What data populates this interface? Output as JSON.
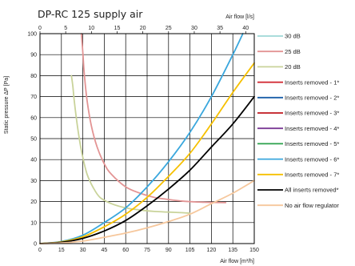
{
  "chart_data": {
    "type": "line",
    "title": "DP-RC 125 supply air",
    "xlabel": "Air flow [m³/h]",
    "x2label": "Air flow [l/s]",
    "ylabel": "Static pressure ΔP [Pa]",
    "xlim": [
      0,
      150
    ],
    "ylim": [
      0,
      100
    ],
    "x2lim": [
      0,
      41.667
    ],
    "x_ticks": [
      "0",
      "15",
      "30",
      "45",
      "60",
      "75",
      "90",
      "105",
      "120",
      "135",
      "150"
    ],
    "x2_ticks": [
      "0",
      "5",
      "10",
      "15",
      "20",
      "25",
      "30",
      "35",
      "40"
    ],
    "y_ticks": [
      "0",
      "10",
      "20",
      "30",
      "40",
      "50",
      "60",
      "70",
      "80",
      "90",
      "100"
    ],
    "grid": true,
    "legend_position": "right",
    "series": [
      {
        "name": "30 dB",
        "color": "#9ed8d6",
        "x": [],
        "y": []
      },
      {
        "name": "25 dB",
        "color": "#e39494",
        "x": [
          29,
          30,
          31,
          33,
          36,
          40,
          45,
          50,
          60,
          70,
          80,
          90,
          100,
          110,
          120,
          130
        ],
        "y": [
          100,
          91,
          81,
          68,
          56,
          46,
          38,
          33,
          27,
          24,
          22,
          21,
          20.2,
          19.8,
          19.6,
          19.5
        ]
      },
      {
        "name": "20 dB",
        "color": "#c9d39a",
        "x": [
          22,
          23,
          24,
          26,
          28,
          30,
          33,
          37,
          42,
          50,
          60,
          70,
          80,
          90,
          100,
          105
        ],
        "y": [
          80,
          75,
          68,
          57,
          48,
          41,
          33,
          27,
          22,
          19,
          17,
          16,
          15.3,
          15,
          14.7,
          14.5
        ]
      },
      {
        "name": "Inserts removed - 1*",
        "color": "#d0202a",
        "x": [],
        "y": []
      },
      {
        "name": "Inserts removed - 2*",
        "color": "#1a5ea8",
        "x": [],
        "y": []
      },
      {
        "name": "Inserts removed - 3*",
        "color": "#c0181f",
        "x": [],
        "y": []
      },
      {
        "name": "Inserts removed - 4*",
        "color": "#7b3a96",
        "x": [],
        "y": []
      },
      {
        "name": "Inserts removed - 5*",
        "color": "#2aa04a",
        "x": [],
        "y": []
      },
      {
        "name": "Inserts removed - 6*",
        "color": "#3aa7dd",
        "x": [
          0,
          15,
          30,
          45,
          60,
          75,
          90,
          105,
          120,
          135,
          142
        ],
        "y": [
          0,
          1,
          4,
          10,
          17,
          27,
          39,
          53,
          70,
          90,
          100
        ]
      },
      {
        "name": "Inserts removed - 7*",
        "color": "#f6c000",
        "x": [
          0,
          15,
          30,
          45,
          60,
          75,
          90,
          105,
          120,
          135,
          150
        ],
        "y": [
          0,
          0.8,
          3.2,
          8,
          14,
          22,
          32,
          43,
          57,
          72,
          86
        ]
      },
      {
        "name": "All inserts removed*",
        "color": "#000000",
        "x": [
          0,
          15,
          30,
          45,
          60,
          75,
          90,
          105,
          120,
          135,
          150
        ],
        "y": [
          0,
          0.6,
          2.5,
          6,
          11,
          18,
          26,
          35,
          46,
          57,
          70
        ]
      },
      {
        "name": "No air flow regulator",
        "color": "#f6c79c",
        "x": [
          0,
          15,
          30,
          45,
          60,
          75,
          90,
          105,
          120,
          135,
          150
        ],
        "y": [
          0,
          0.3,
          1.2,
          3,
          5,
          7.5,
          10.5,
          14,
          19,
          24,
          30
        ]
      }
    ]
  }
}
